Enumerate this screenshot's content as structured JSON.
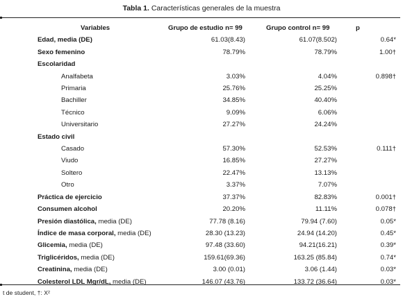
{
  "caption": {
    "label": "Tabla 1.",
    "text": "Características generales de la muestra"
  },
  "header": {
    "variables": "Variables",
    "grupo_estudio": "Grupo de estudio  n= 99",
    "grupo_control": "Grupo control  n= 99",
    "p": "p"
  },
  "rows": [
    {
      "label": "Edad,",
      "label_rest": " media (DE)",
      "bold_all": true,
      "indent": false,
      "estudio": "61.03(8.43)",
      "control": "61.07(8.502)",
      "p": "0.64*"
    },
    {
      "label": "Sexo femenino",
      "label_rest": "",
      "bold_all": true,
      "indent": false,
      "estudio": "78.79%",
      "control": "78.79%",
      "p": "1.00†"
    },
    {
      "label": "Escolaridad",
      "label_rest": "",
      "bold_all": true,
      "indent": false,
      "estudio": "",
      "control": "",
      "p": ""
    },
    {
      "label": "Analfabeta",
      "label_rest": "",
      "bold_all": false,
      "indent": true,
      "estudio": "3.03%",
      "control": "4.04%",
      "p": "0.898†"
    },
    {
      "label": "Primaria",
      "label_rest": "",
      "bold_all": false,
      "indent": true,
      "estudio": "25.76%",
      "control": "25.25%",
      "p": ""
    },
    {
      "label": "Bachiller",
      "label_rest": "",
      "bold_all": false,
      "indent": true,
      "estudio": "34.85%",
      "control": "40.40%",
      "p": ""
    },
    {
      "label": "Técnico",
      "label_rest": "",
      "bold_all": false,
      "indent": true,
      "estudio": "9.09%",
      "control": "6.06%",
      "p": ""
    },
    {
      "label": "Universitario",
      "label_rest": "",
      "bold_all": false,
      "indent": true,
      "estudio": "27.27%",
      "control": "24.24%",
      "p": ""
    },
    {
      "label": "Estado civil",
      "label_rest": "",
      "bold_all": true,
      "indent": false,
      "estudio": "",
      "control": "",
      "p": ""
    },
    {
      "label": "Casado",
      "label_rest": "",
      "bold_all": false,
      "indent": true,
      "estudio": "57.30%",
      "control": "52.53%",
      "p": "0.111†"
    },
    {
      "label": "Viudo",
      "label_rest": "",
      "bold_all": false,
      "indent": true,
      "estudio": "16.85%",
      "control": "27.27%",
      "p": ""
    },
    {
      "label": "Soltero",
      "label_rest": "",
      "bold_all": false,
      "indent": true,
      "estudio": "22.47%",
      "control": "13.13%",
      "p": ""
    },
    {
      "label": "Otro",
      "label_rest": "",
      "bold_all": false,
      "indent": true,
      "estudio": "3.37%",
      "control": "7.07%",
      "p": ""
    },
    {
      "label": "Práctica de ejercicio",
      "label_rest": "",
      "bold_all": true,
      "indent": false,
      "estudio": "37.37%",
      "control": "82.83%",
      "p": "0.001†"
    },
    {
      "label": "Consumen alcohol",
      "label_rest": "",
      "bold_all": true,
      "indent": false,
      "estudio": "20.20%",
      "control": "11.11%",
      "p": "0.078†"
    },
    {
      "label": "Presión diastólica,",
      "label_rest": " media (DE)",
      "bold_all": false,
      "indent": false,
      "estudio": "77.78 (8.16)",
      "control": "79.94 (7.60)",
      "p": "0.05*"
    },
    {
      "label": "Índice de masa corporal,",
      "label_rest": " media (DE)",
      "bold_all": false,
      "indent": false,
      "estudio": "28.30 (13.23)",
      "control": "24.94 (14.20)",
      "p": "0.45*"
    },
    {
      "label": "Glicemia,",
      "label_rest": " media (DE)",
      "bold_all": false,
      "indent": false,
      "estudio": "97.48 (33.60)",
      "control": "94.21(16.21)",
      "p": "0.39*"
    },
    {
      "label": "Triglicéridos,",
      "label_rest": " media (DE)",
      "bold_all": false,
      "indent": false,
      "estudio": "159.61(69.36)",
      "control": "163.25 (85.84)",
      "p": "0.74*"
    },
    {
      "label": "Creatinina,",
      "label_rest": " media (DE)",
      "bold_all": false,
      "indent": false,
      "estudio": "3.00 (0.01)",
      "control": "3.06 (1.44)",
      "p": "0.03*"
    },
    {
      "label": "Colesterol LDL Mgr/dL,",
      "label_rest": " media (DE)",
      "bold_all": false,
      "indent": false,
      "estudio": "146.07 (43.76)",
      "control": "133.72 (36.64)",
      "p": "0.03*"
    }
  ],
  "footnote": "t de student, †: X²"
}
